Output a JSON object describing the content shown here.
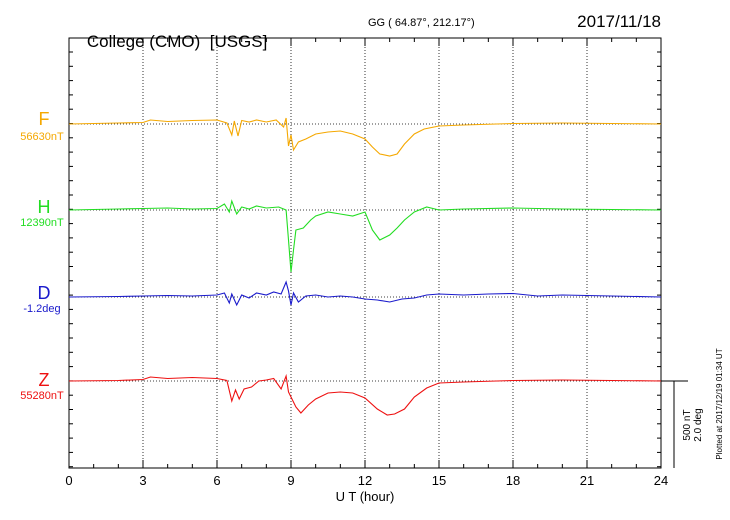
{
  "header": {
    "station": "College (CMO)",
    "agency": "[USGS]",
    "coords": "GG ( 64.87°, 212.17°)",
    "date": "2017/11/18"
  },
  "chart_data": {
    "type": "line",
    "xlabel": "U T (hour)",
    "xlim": [
      0,
      24
    ],
    "xticks": [
      0,
      3,
      6,
      9,
      12,
      15,
      18,
      21,
      24
    ],
    "grid": true,
    "series": [
      {
        "name": "F",
        "baseline_label": "56630nT",
        "color": "#f5a800",
        "x": [
          0,
          2,
          3,
          3.3,
          4,
          5,
          6,
          6.4,
          6.6,
          6.7,
          6.85,
          7,
          7.3,
          7.6,
          8,
          8.4,
          8.7,
          8.8,
          8.9,
          9.0,
          9.1,
          9.3,
          9.6,
          10,
          10.5,
          11,
          11.5,
          12,
          12.3,
          12.6,
          13,
          13.3,
          13.6,
          14,
          14.4,
          15,
          16,
          18,
          20,
          22,
          24
        ],
        "y": [
          0,
          10,
          15,
          40,
          25,
          35,
          40,
          10,
          -110,
          30,
          -120,
          35,
          20,
          40,
          20,
          40,
          -30,
          60,
          -220,
          -110,
          -260,
          -180,
          -150,
          -100,
          -80,
          -70,
          -100,
          -150,
          -230,
          -300,
          -320,
          -300,
          -200,
          -100,
          -50,
          -20,
          -10,
          5,
          10,
          5,
          0
        ]
      },
      {
        "name": "H",
        "baseline_label": "12390nT",
        "color": "#22dd22",
        "x": [
          0,
          2,
          3,
          4,
          5,
          6,
          6.3,
          6.5,
          6.6,
          6.8,
          7,
          7.3,
          7.6,
          8,
          8.5,
          8.8,
          8.9,
          9.0,
          9.1,
          9.2,
          9.5,
          9.8,
          10,
          10.5,
          11,
          11.5,
          12,
          12.3,
          12.6,
          13,
          13.3,
          13.6,
          14,
          14.5,
          15,
          16,
          18,
          20,
          22,
          24
        ],
        "y": [
          0,
          10,
          15,
          20,
          10,
          15,
          60,
          -20,
          90,
          -40,
          30,
          10,
          40,
          20,
          30,
          0,
          -300,
          -620,
          -400,
          -200,
          -180,
          -100,
          -60,
          -20,
          -40,
          -60,
          -20,
          -200,
          -300,
          -250,
          -180,
          -100,
          -20,
          30,
          0,
          10,
          20,
          10,
          5,
          0
        ]
      },
      {
        "name": "D",
        "baseline_label": "-1.2deg",
        "color": "#1a1acc",
        "x": [
          0,
          2,
          3,
          4,
          5,
          6,
          6.3,
          6.5,
          6.6,
          6.8,
          7,
          7.3,
          7.6,
          8,
          8.3,
          8.6,
          8.8,
          8.9,
          9.0,
          9.1,
          9.3,
          9.6,
          10,
          10.5,
          11,
          11.5,
          12,
          12.5,
          13,
          13.5,
          14,
          14.5,
          15,
          16,
          17,
          18,
          19,
          20,
          22,
          24
        ],
        "y": [
          0,
          5,
          10,
          15,
          10,
          20,
          40,
          -60,
          30,
          -80,
          20,
          -10,
          40,
          20,
          50,
          30,
          150,
          60,
          -80,
          40,
          -50,
          10,
          20,
          0,
          10,
          0,
          -20,
          -30,
          -50,
          -20,
          -10,
          20,
          30,
          20,
          30,
          35,
          10,
          20,
          10,
          0
        ]
      },
      {
        "name": "Z",
        "baseline_label": "55280nT",
        "color": "#ee1111",
        "x": [
          0,
          2,
          3,
          3.3,
          4,
          5,
          6,
          6.4,
          6.6,
          6.75,
          6.9,
          7.1,
          7.4,
          7.7,
          8,
          8.3,
          8.6,
          8.8,
          8.9,
          9.0,
          9.2,
          9.4,
          9.7,
          10,
          10.5,
          11,
          11.5,
          12,
          12.5,
          12.9,
          13.2,
          13.6,
          14,
          14.5,
          15,
          16,
          18,
          20,
          22,
          24
        ],
        "y": [
          0,
          5,
          15,
          40,
          25,
          35,
          25,
          5,
          -200,
          -90,
          -180,
          -80,
          -60,
          0,
          10,
          25,
          -80,
          50,
          -110,
          -160,
          -260,
          -320,
          -240,
          -180,
          -120,
          -110,
          -120,
          -170,
          -280,
          -340,
          -330,
          -280,
          -160,
          -70,
          -20,
          -10,
          5,
          10,
          5,
          0
        ]
      }
    ],
    "scale_bar": {
      "line1": "500 nT",
      "line2": "2.0 deg"
    },
    "plotted_note": "Plotted at 2017/12/19 01:34 UT"
  }
}
